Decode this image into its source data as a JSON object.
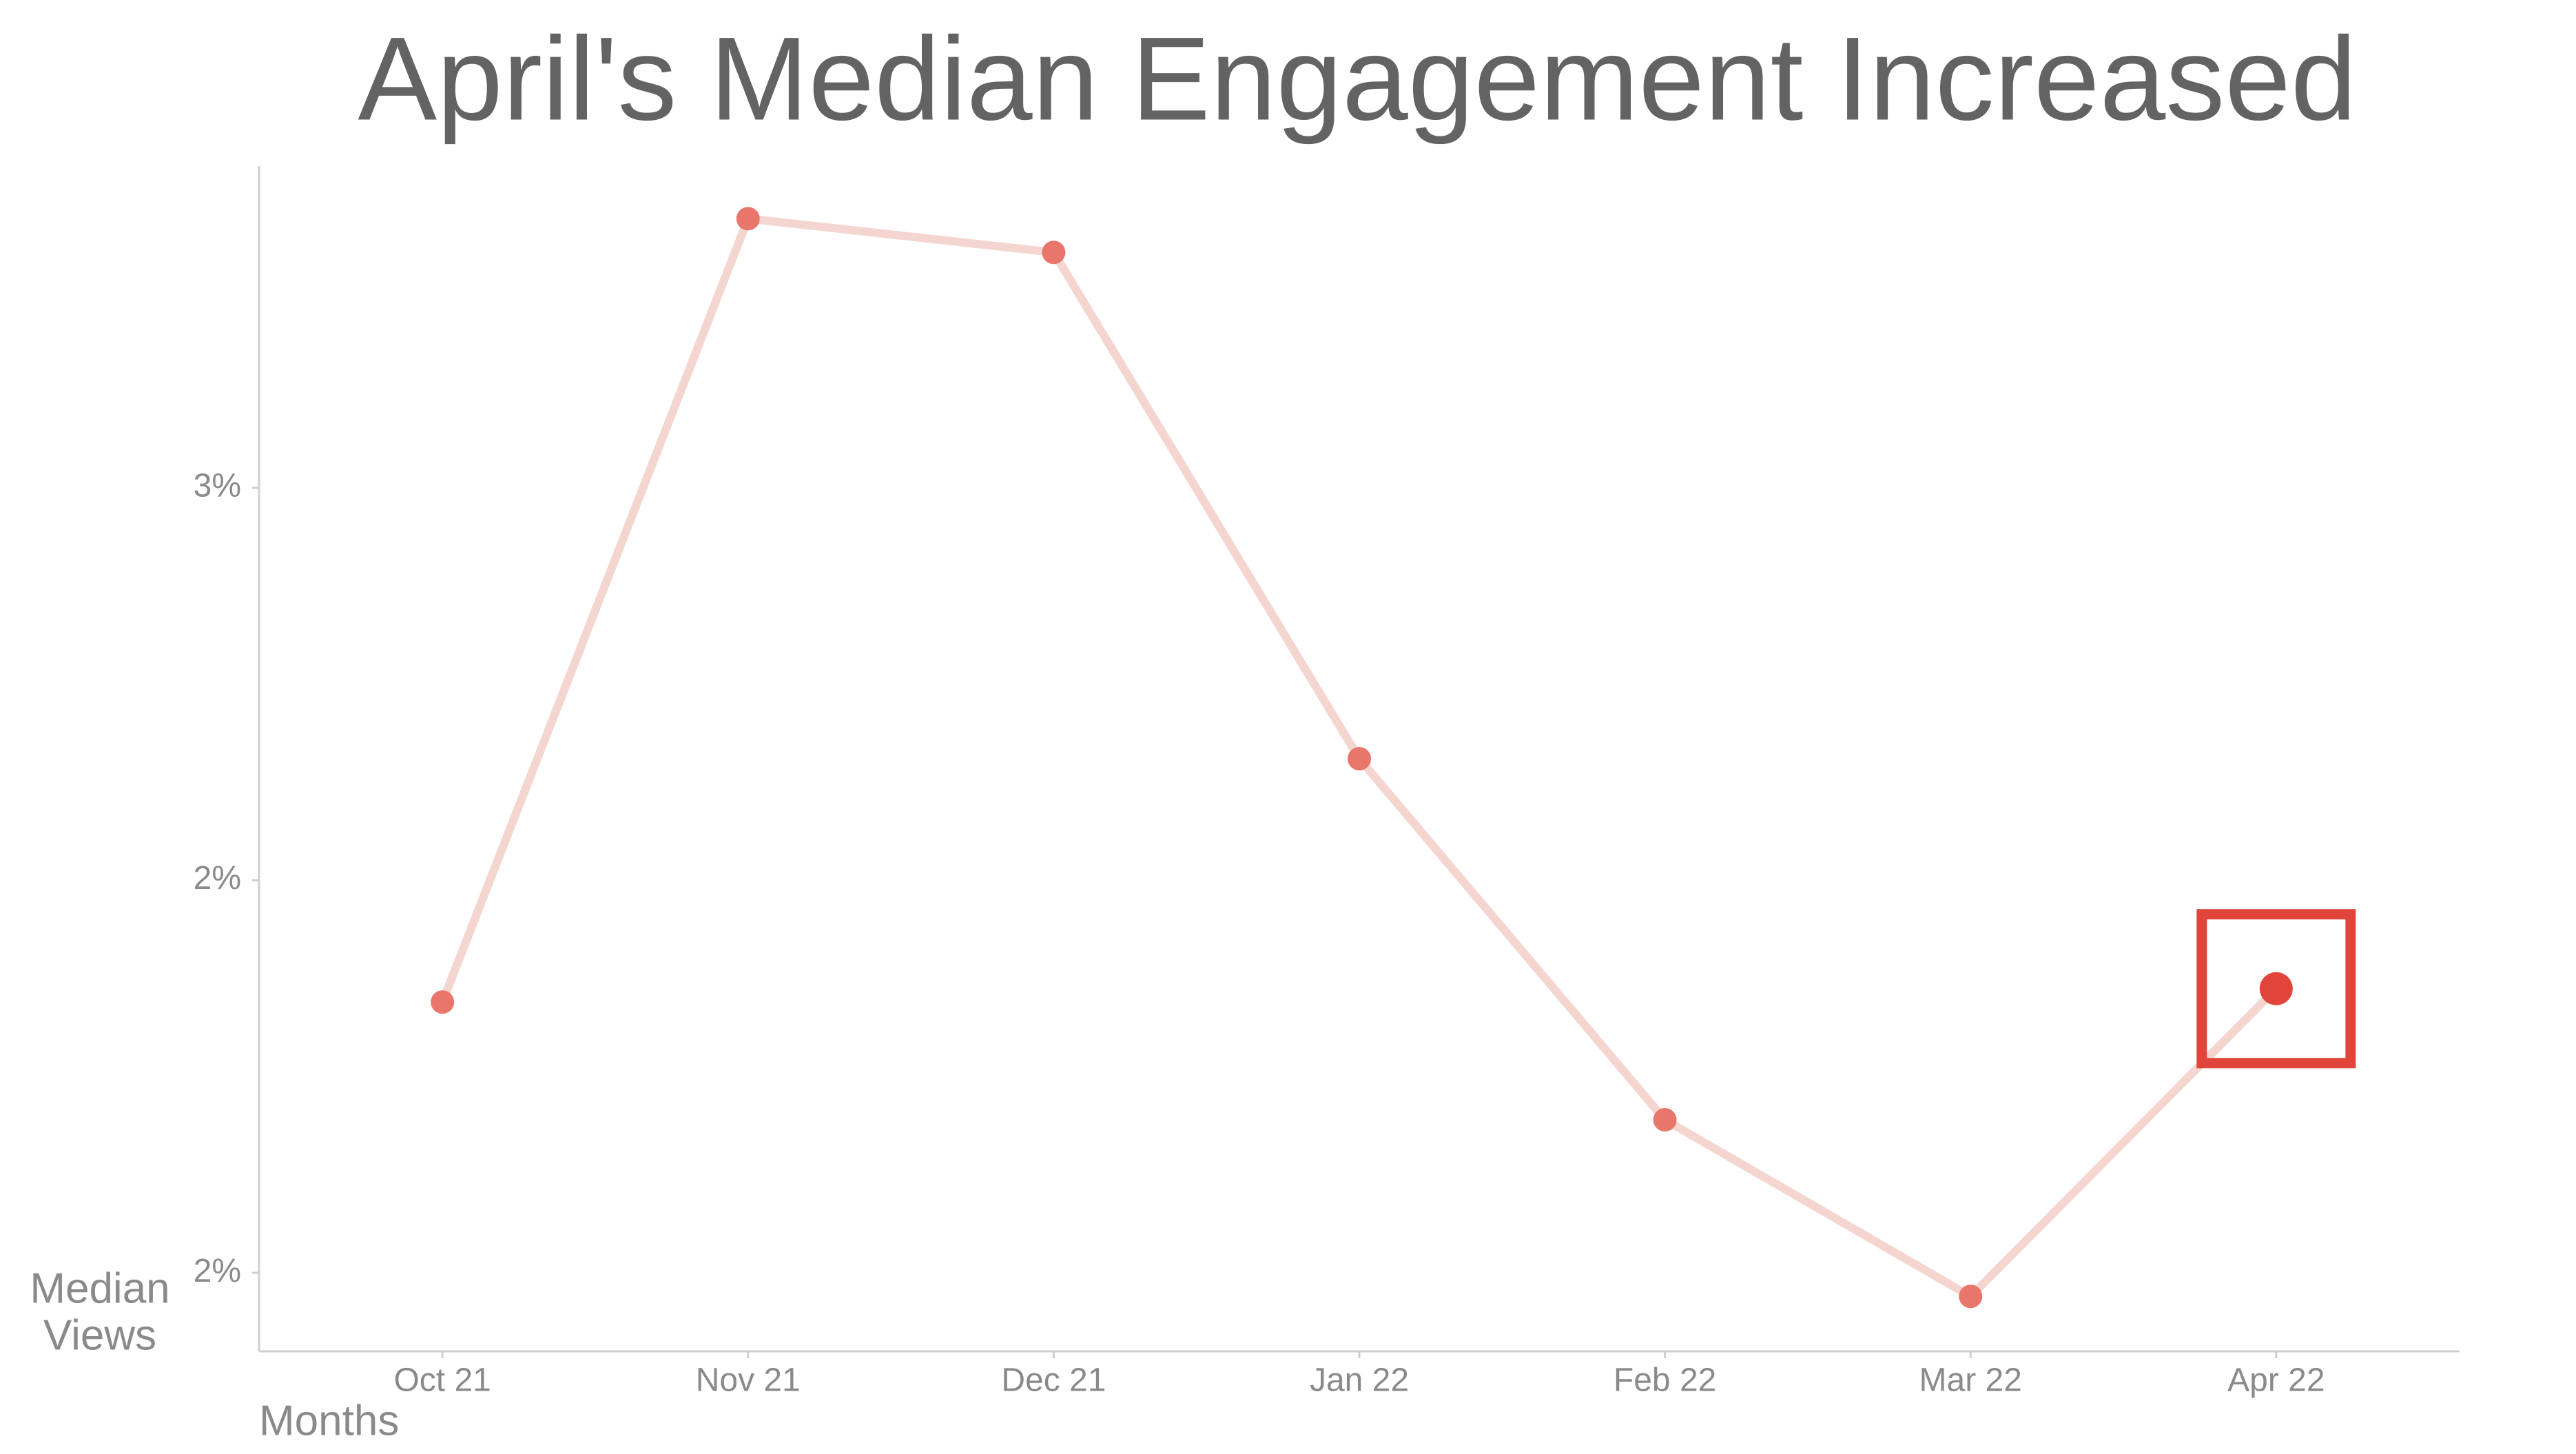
{
  "chart_data": {
    "type": "line",
    "title": "April's Median Engagement Increased",
    "x_label": "Months",
    "y_label": [
      "Median",
      "Views"
    ],
    "categories": [
      "Oct 21",
      "Nov 21",
      "Dec 21",
      "Jan 22",
      "Feb 22",
      "Mar 22",
      "Apr 22"
    ],
    "series": [
      {
        "name": "Median Views",
        "color": "#f5d5cf",
        "marker_color": "#e8766a",
        "values": [
          2.345,
          3.343,
          3.3,
          2.655,
          2.195,
          1.97,
          2.362
        ]
      }
    ],
    "highlight_index": 6,
    "highlight_color": "#e0443a",
    "ylim": [
      1.9,
      3.41
    ],
    "yticks": [
      {
        "value": 2.0,
        "label": "2%"
      },
      {
        "value": 2.5,
        "label": "2%"
      },
      {
        "value": 3.0,
        "label": "3%"
      }
    ],
    "grid": false
  }
}
